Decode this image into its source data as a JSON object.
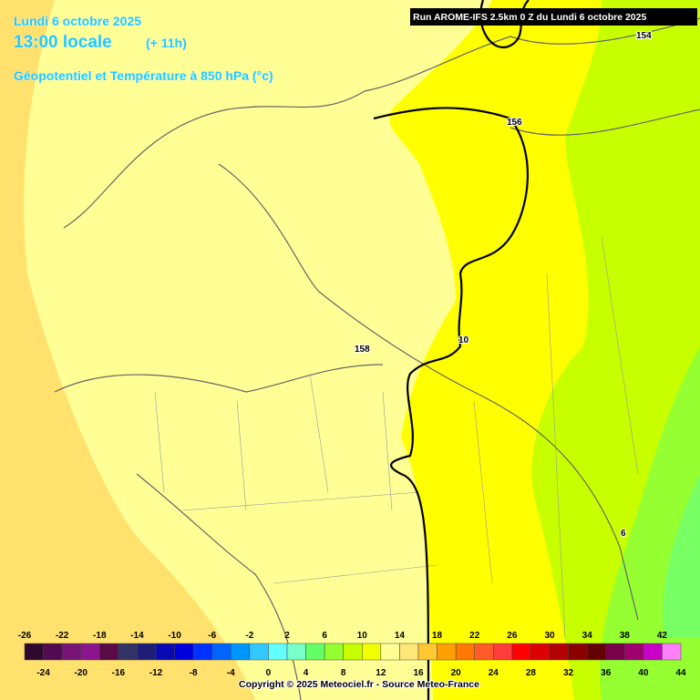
{
  "header": {
    "date": "Lundi 6 octobre 2025",
    "time": "13:00 locale",
    "lead": "(+ 11h)",
    "parameter": "Géopotentiel et Température à 850 hPa (°c)",
    "run": "Run AROME-IFS 2.5km 0 Z du Lundi 6 octobre 2025"
  },
  "contour_labels": [
    "154",
    "156",
    "158",
    "10",
    "6"
  ],
  "legend": {
    "ticks": [
      -26,
      -24,
      -22,
      -20,
      -18,
      -16,
      -14,
      -12,
      -10,
      -8,
      -6,
      -4,
      -2,
      0,
      2,
      4,
      6,
      8,
      10,
      12,
      14,
      16,
      18,
      20,
      22,
      24,
      26,
      28,
      30,
      32,
      34,
      36,
      38,
      40,
      42,
      44
    ],
    "colors": [
      "#2d0a2d",
      "#500a50",
      "#781478",
      "#8c148c",
      "#5a0a46",
      "#323264",
      "#1e1e78",
      "#0a0ab4",
      "#0000dc",
      "#0032ff",
      "#0064ff",
      "#0096ff",
      "#32c8ff",
      "#64ffff",
      "#78ffc8",
      "#64ff64",
      "#96ff32",
      "#c8ff00",
      "#f0ff00",
      "#ffff96",
      "#ffe678",
      "#ffc832",
      "#ffa000",
      "#ff7800",
      "#ff5a28",
      "#ff3c3c",
      "#ff0000",
      "#dc0000",
      "#b40000",
      "#8c0000",
      "#640000",
      "#78004b",
      "#a0006e",
      "#c800c8",
      "#ff80ff"
    ]
  },
  "footer": {
    "copyright": "Copyright © 2025 Meteociel.fr - Source Meteo-France"
  }
}
